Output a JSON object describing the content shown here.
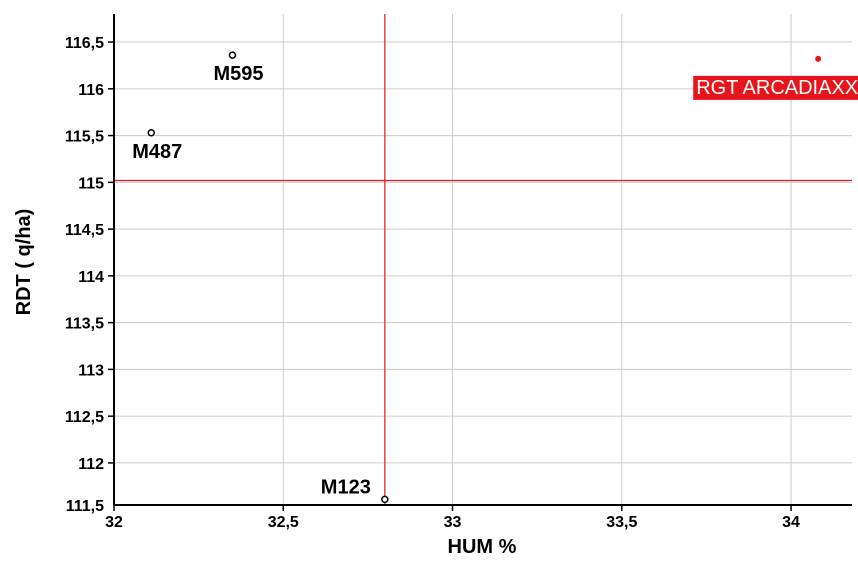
{
  "chart_data": {
    "type": "scatter",
    "title": "",
    "xlabel": "HUM %",
    "ylabel": "RDT ( q/ha)",
    "xlim": [
      32,
      34.18
    ],
    "ylim": [
      111.55,
      116.8
    ],
    "x_ticks": [
      32,
      32.5,
      33,
      33.5,
      34
    ],
    "x_tick_labels": [
      "32",
      "32,5",
      "33",
      "33,5",
      "34"
    ],
    "y_ticks": [
      111.5,
      112,
      112.5,
      113,
      113.5,
      114,
      114.5,
      115,
      115.5,
      116,
      116.5
    ],
    "y_tick_labels": [
      "111,5",
      "112",
      "112,5",
      "113",
      "113,5",
      "114",
      "114,5",
      "115",
      "115,5",
      "116",
      "116,5"
    ],
    "grid": true,
    "reference_lines": {
      "x": 32.8,
      "y": 115.02,
      "color": "#e8141b"
    },
    "points": [
      {
        "label": "M595",
        "x": 32.35,
        "y": 116.36,
        "highlight": false
      },
      {
        "label": "M487",
        "x": 32.11,
        "y": 115.53,
        "highlight": false
      },
      {
        "label": "M123",
        "x": 32.8,
        "y": 111.61,
        "highlight": false
      },
      {
        "label": "RGT ARCADIAXX",
        "x": 34.08,
        "y": 116.32,
        "highlight": true
      }
    ],
    "colors": {
      "highlight": "#e8141b",
      "point": "#000000",
      "grid": "#cccccc",
      "axis": "#000000"
    }
  }
}
